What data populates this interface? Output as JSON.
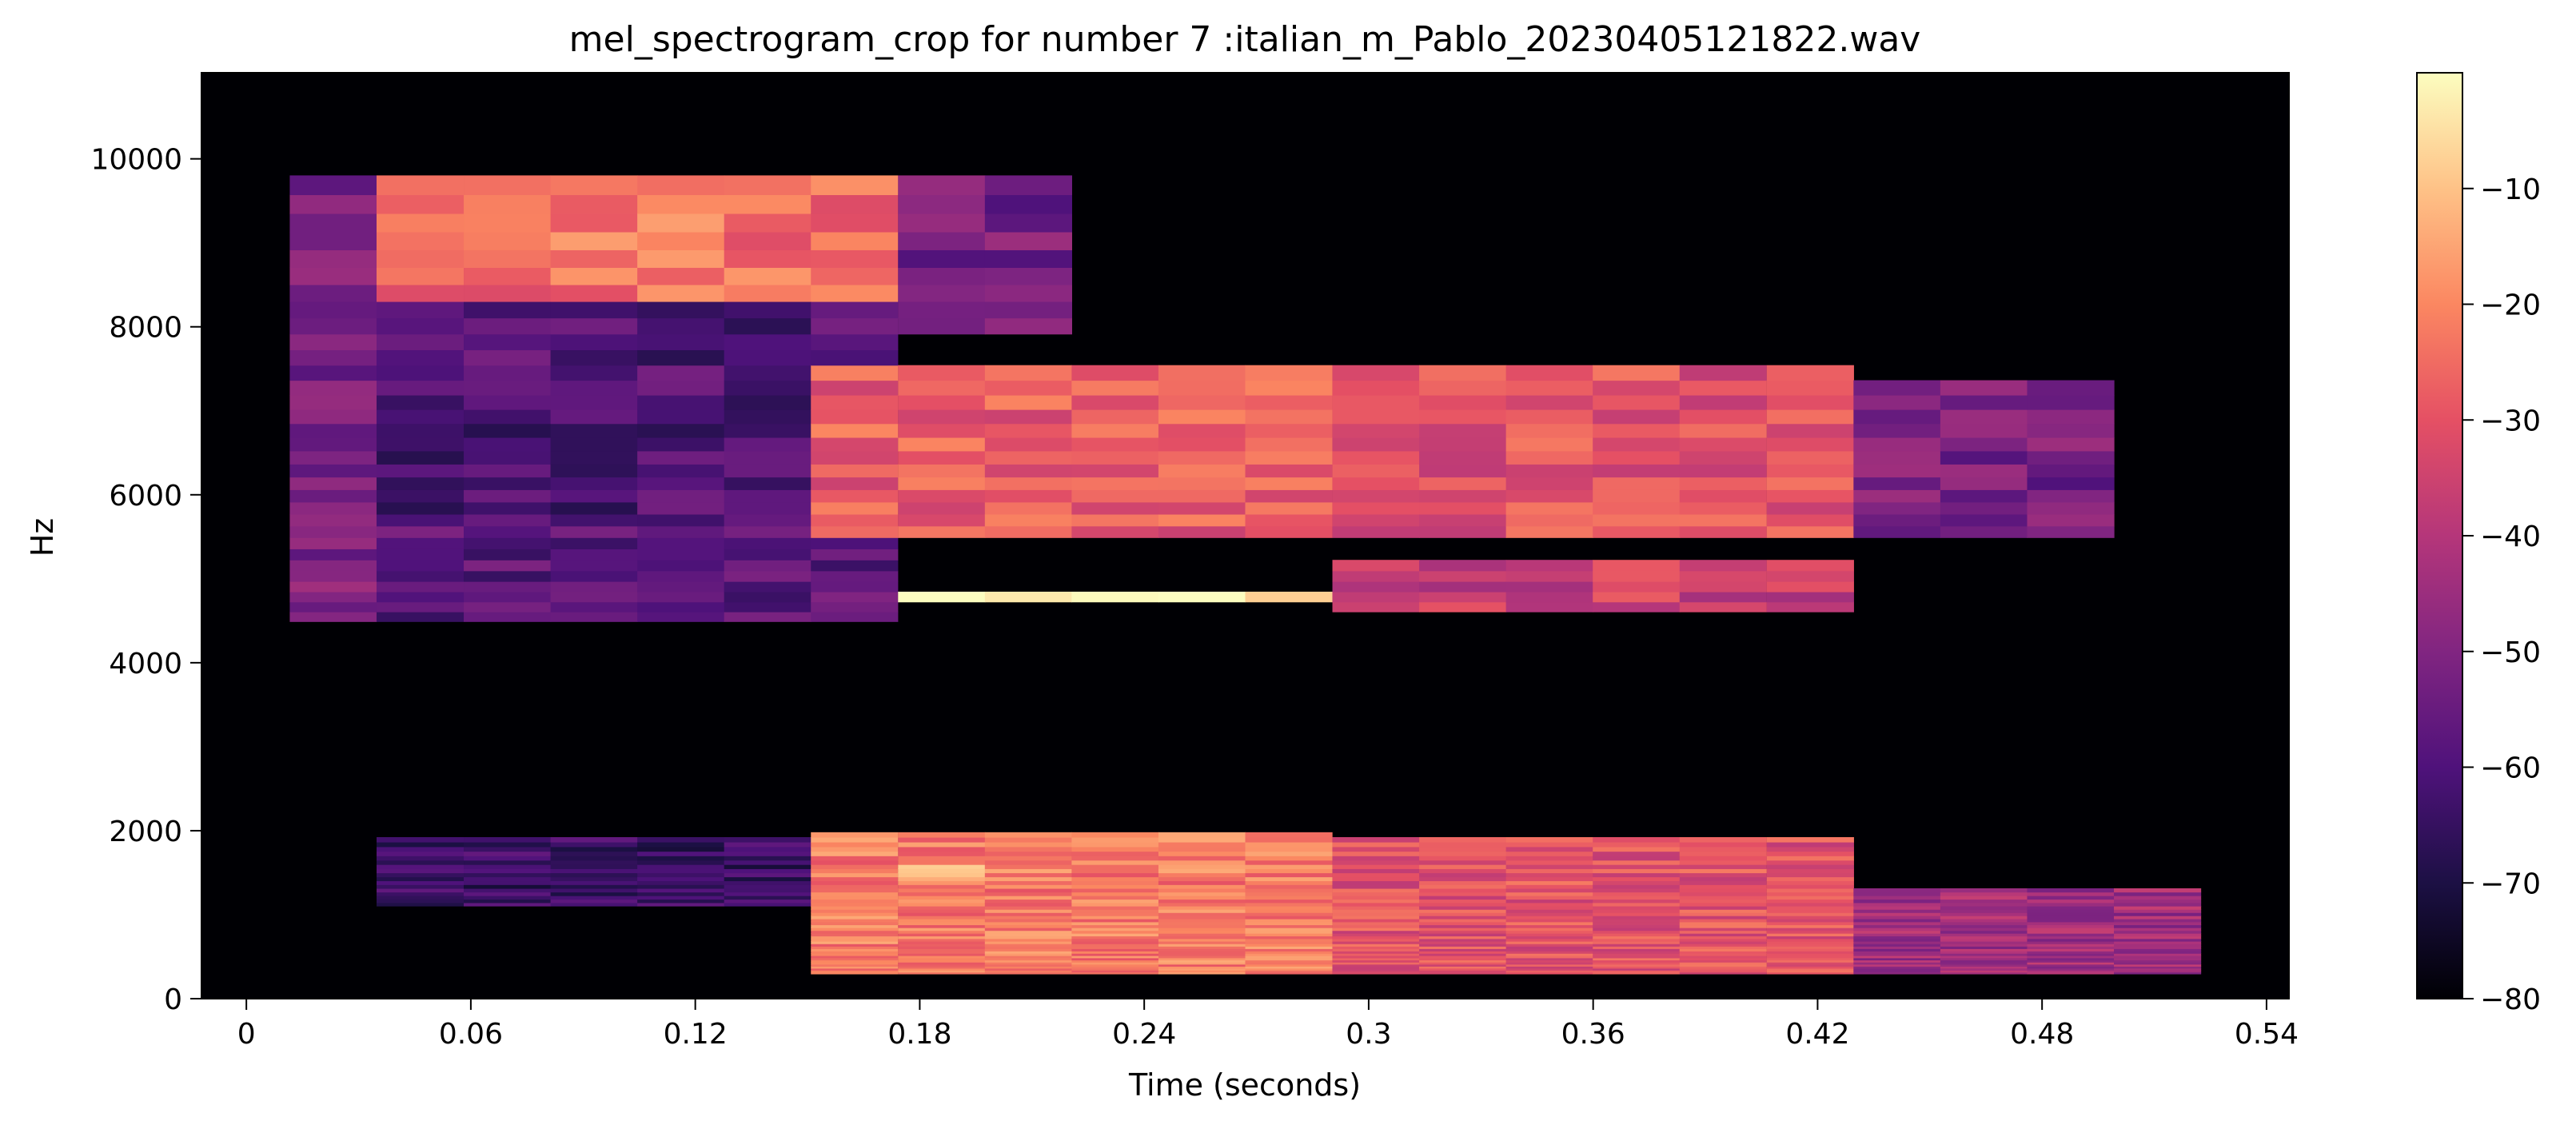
{
  "chart_data": {
    "type": "heatmap",
    "title": "mel_spectrogram_crop for number 7 :italian_m_Pablo_20230405121822.wav",
    "xlabel": "Time (seconds)",
    "ylabel": "Hz",
    "xlim": [
      -0.012,
      0.546
    ],
    "ylim": [
      0,
      11025
    ],
    "x_ticks": [
      0,
      0.06,
      0.12,
      0.18,
      0.24,
      0.3,
      0.36,
      0.42,
      0.48,
      0.54
    ],
    "x_tick_labels": [
      "0",
      "0.06",
      "0.12",
      "0.18",
      "0.24",
      "0.3",
      "0.36",
      "0.42",
      "0.48",
      "0.54"
    ],
    "y_ticks": [
      0,
      2000,
      4000,
      6000,
      8000,
      10000
    ],
    "y_tick_labels": [
      "0",
      "2000",
      "4000",
      "6000",
      "8000",
      "10000"
    ],
    "colormap": "magma",
    "colorbar": {
      "range": [
        -80,
        0
      ],
      "ticks": [
        -10,
        -20,
        -30,
        -40,
        -50,
        -60,
        -70,
        -80
      ],
      "tick_labels": [
        "−10",
        "−20",
        "−30",
        "−40",
        "−50",
        "−60",
        "−70",
        "−80"
      ]
    },
    "frame_times": [
      0,
      0.0232,
      0.0464,
      0.0697,
      0.0929,
      0.1161,
      0.1393,
      0.1625,
      0.1858,
      0.209,
      0.2322,
      0.2554,
      0.2786,
      0.3019,
      0.3251,
      0.3483,
      0.3715,
      0.3947,
      0.418,
      0.4412,
      0.4644,
      0.4876,
      0.5108,
      0.5341
    ],
    "energy_regions_db": [
      {
        "t": [
          0.012,
          0.035
        ],
        "hz": [
          4500,
          9800
        ],
        "db": -52
      },
      {
        "t": [
          0.035,
          0.175
        ],
        "hz": [
          8400,
          9800
        ],
        "db": -24
      },
      {
        "t": [
          0.035,
          0.175
        ],
        "hz": [
          5600,
          8400
        ],
        "db": -60
      },
      {
        "t": [
          0.035,
          0.175
        ],
        "hz": [
          4500,
          5600
        ],
        "db": -58
      },
      {
        "t": [
          0.035,
          0.175
        ],
        "hz": [
          1100,
          1900
        ],
        "db": -64
      },
      {
        "t": [
          0.175,
          0.22
        ],
        "hz": [
          8000,
          9800
        ],
        "db": -52
      },
      {
        "t": [
          0.15,
          0.3
        ],
        "hz": [
          5500,
          7600
        ],
        "db": -28
      },
      {
        "t": [
          0.17,
          0.29
        ],
        "hz": [
          4700,
          4900
        ],
        "db": -6
      },
      {
        "t": [
          0.15,
          0.3
        ],
        "hz": [
          300,
          2000
        ],
        "db": -22
      },
      {
        "t": [
          0.18,
          0.2
        ],
        "hz": [
          1400,
          1600
        ],
        "db": -6
      },
      {
        "t": [
          0.3,
          0.43
        ],
        "hz": [
          5500,
          7600
        ],
        "db": -30
      },
      {
        "t": [
          0.3,
          0.43
        ],
        "hz": [
          4600,
          5200
        ],
        "db": -36
      },
      {
        "t": [
          0.3,
          0.43
        ],
        "hz": [
          300,
          1900
        ],
        "db": -30
      },
      {
        "t": [
          0.43,
          0.5
        ],
        "hz": [
          5500,
          7300
        ],
        "db": -52
      },
      {
        "t": [
          0.43,
          0.525
        ],
        "hz": [
          300,
          1300
        ],
        "db": -44
      }
    ]
  }
}
